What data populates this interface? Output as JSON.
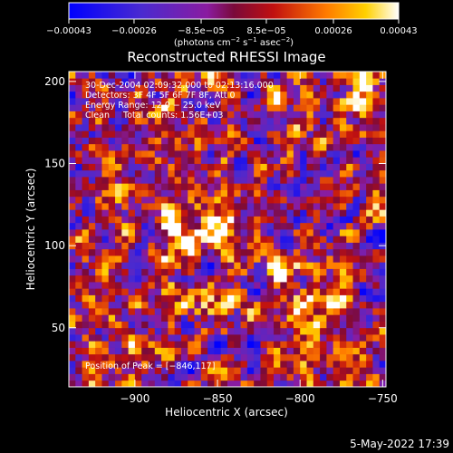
{
  "chart_data": {
    "type": "heatmap",
    "title": "Reconstructed RHESSI Image",
    "xlabel": "Heliocentric X (arcsec)",
    "ylabel": "Heliocentric Y (arcsec)",
    "xlim": [
      -940,
      -748
    ],
    "ylim": [
      14,
      206
    ],
    "xticks": [
      -900,
      -850,
      -800,
      -750
    ],
    "xtick_labels": [
      "−900",
      "−850",
      "−800",
      "−750"
    ],
    "yticks": [
      50,
      100,
      150,
      200
    ],
    "ytick_labels": [
      "50",
      "100",
      "150",
      "200"
    ],
    "colorbar": {
      "range": [
        -0.00043,
        0.00043
      ],
      "ticks": [
        -0.00043,
        -0.00026,
        -8.5e-05,
        8.5e-05,
        0.00026,
        0.00043
      ],
      "tick_labels": [
        "−0.00043",
        "−0.00026",
        "−8.5e−05",
        "8.5e−05",
        "0.00026",
        "0.00043"
      ],
      "unit_main": "(photons cm",
      "unit_sup1": "−2",
      "unit_mid": " s",
      "unit_sup2": "−1",
      "unit_end": " asec",
      "unit_sup3": "−2",
      "unit_close": ")"
    },
    "grid": false,
    "annotations": [
      "30-Dec-2004 02:09:32.000 to 02:13:16.000",
      "Detectors: 3F 4F 5F 6F 7F 8F, Att 0",
      "Energy Range: 12.0 − 25.0 keV",
      "Clean     Total counts: 1.56E+03"
    ],
    "peak_label": "Position of Peak = [−846,117]",
    "peak": [
      -846,
      117
    ],
    "peak_value": 0.00043,
    "sources": [
      {
        "x": -846,
        "y": 117,
        "value": 0.00043
      },
      {
        "x": -872,
        "y": 110,
        "value": 0.00026
      },
      {
        "x": -878,
        "y": 94,
        "value": 0.00022
      },
      {
        "x": -812,
        "y": 88,
        "value": 0.00028
      },
      {
        "x": -805,
        "y": 62,
        "value": 0.00025
      },
      {
        "x": -780,
        "y": 70,
        "value": 0.00022
      },
      {
        "x": -770,
        "y": 38,
        "value": 0.0002
      },
      {
        "x": -855,
        "y": 62,
        "value": 0.00018
      },
      {
        "x": -890,
        "y": 75,
        "value": 0.00015
      },
      {
        "x": -900,
        "y": 30,
        "value": 0.00014
      },
      {
        "x": -760,
        "y": 190,
        "value": 0.00018
      },
      {
        "x": -810,
        "y": 195,
        "value": 0.00014
      },
      {
        "x": -890,
        "y": 180,
        "value": 0.00012
      }
    ]
  },
  "footer": {
    "date": "5-May-2022 17:39"
  }
}
